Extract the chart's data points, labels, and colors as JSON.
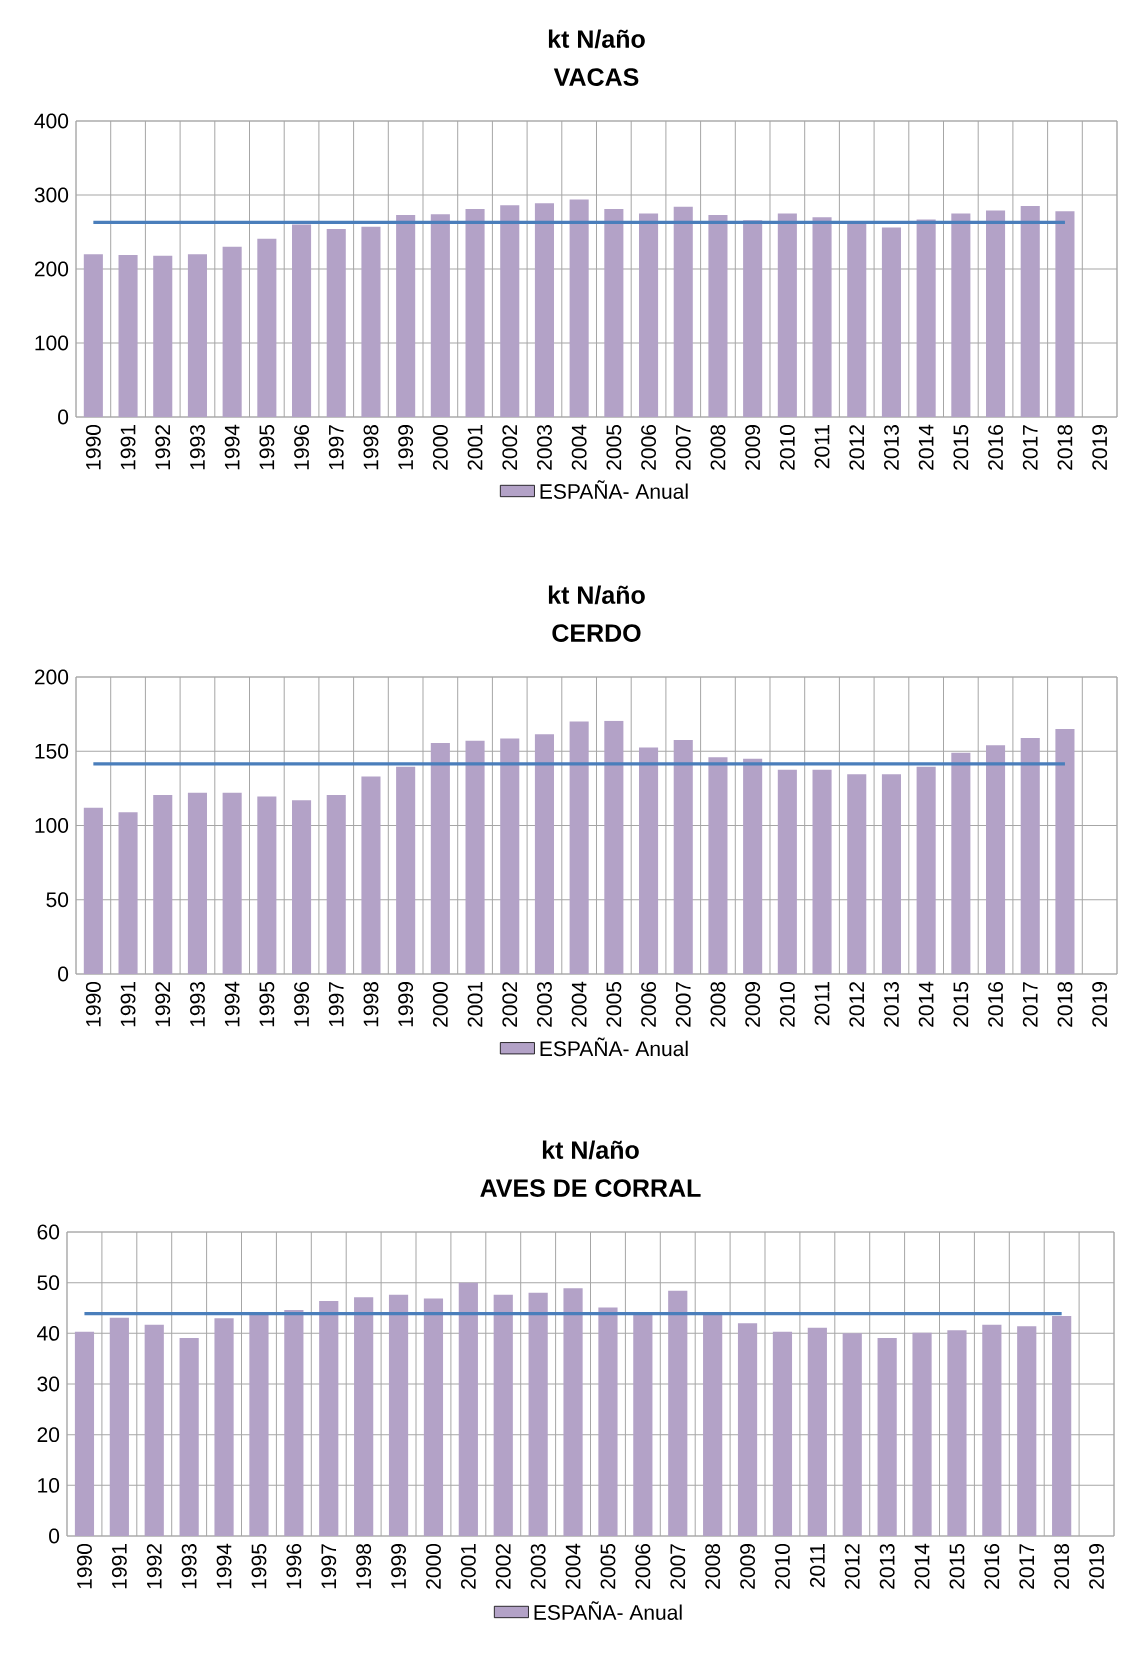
{
  "chart_data": [
    {
      "type": "bar",
      "title": "kt N/año",
      "subtitle": "VACAS",
      "categories": [
        "1990",
        "1991",
        "1992",
        "1993",
        "1994",
        "1995",
        "1996",
        "1997",
        "1998",
        "1999",
        "2000",
        "2001",
        "2002",
        "2003",
        "2004",
        "2005",
        "2006",
        "2007",
        "2008",
        "2009",
        "2010",
        "2011",
        "2012",
        "2013",
        "2014",
        "2015",
        "2016",
        "2017",
        "2018",
        "2019"
      ],
      "series": [
        {
          "name": "ESPAÑA- Anual",
          "color": "#b3a2c7",
          "values": [
            220,
            219,
            218,
            220,
            230,
            241,
            260,
            254,
            257,
            273,
            274,
            281,
            286,
            289,
            294,
            281,
            275,
            284,
            273,
            266,
            275,
            270,
            264,
            256,
            267,
            275,
            279,
            285,
            278,
            null
          ]
        },
        {
          "type": "line",
          "color": "#4a7ebb",
          "values": [
            263,
            263,
            263,
            263,
            263,
            263,
            263,
            263,
            263,
            263,
            263,
            263,
            263,
            263,
            263,
            263,
            263,
            263,
            263,
            263,
            263,
            263,
            263,
            263,
            263,
            263,
            263,
            263,
            263,
            null
          ]
        }
      ],
      "ylim": [
        0,
        400
      ],
      "yticks": [
        0,
        100,
        200,
        300,
        400
      ],
      "grid": true,
      "legend": "bottom"
    },
    {
      "type": "bar",
      "title": "kt N/año",
      "subtitle": "CERDO",
      "categories": [
        "1990",
        "1991",
        "1992",
        "1993",
        "1994",
        "1995",
        "1996",
        "1997",
        "1998",
        "1999",
        "2000",
        "2001",
        "2002",
        "2003",
        "2004",
        "2005",
        "2006",
        "2007",
        "2008",
        "2009",
        "2010",
        "2011",
        "2012",
        "2013",
        "2014",
        "2015",
        "2016",
        "2017",
        "2018",
        "2019"
      ],
      "series": [
        {
          "name": "ESPAÑA- Anual",
          "color": "#b3a2c7",
          "values": [
            112,
            109,
            120.5,
            122,
            122,
            119.5,
            117,
            120.5,
            133,
            139.5,
            155.5,
            157,
            158.5,
            161.5,
            170,
            170.5,
            152.5,
            157.5,
            146,
            145,
            137.5,
            137.5,
            134.5,
            134.5,
            139.5,
            149,
            154,
            159,
            165,
            null
          ]
        },
        {
          "type": "line",
          "color": "#4a7ebb",
          "values": [
            141.5,
            141.5,
            141.5,
            141.5,
            141.5,
            141.5,
            141.5,
            141.5,
            141.5,
            141.5,
            141.5,
            141.5,
            141.5,
            141.5,
            141.5,
            141.5,
            141.5,
            141.5,
            141.5,
            141.5,
            141.5,
            141.5,
            141.5,
            141.5,
            141.5,
            141.5,
            141.5,
            141.5,
            141.5,
            null
          ]
        }
      ],
      "ylim": [
        0,
        200
      ],
      "yticks": [
        0,
        50,
        100,
        150,
        200
      ],
      "grid": true,
      "legend": "bottom"
    },
    {
      "type": "bar",
      "title": "kt N/año",
      "subtitle": "AVES DE CORRAL",
      "categories": [
        "1990",
        "1991",
        "1992",
        "1993",
        "1994",
        "1995",
        "1996",
        "1997",
        "1998",
        "1999",
        "2000",
        "2001",
        "2002",
        "2003",
        "2004",
        "2005",
        "2006",
        "2007",
        "2008",
        "2009",
        "2010",
        "2011",
        "2012",
        "2013",
        "2014",
        "2015",
        "2016",
        "2017",
        "2018",
        "2019"
      ],
      "series": [
        {
          "name": "ESPAÑA- Anual",
          "color": "#b3a2c7",
          "values": [
            40.3,
            43.1,
            41.7,
            39.1,
            43,
            44.1,
            44.6,
            46.4,
            47.1,
            47.6,
            46.9,
            50,
            47.6,
            48,
            48.9,
            45.1,
            44.1,
            48.4,
            43.9,
            42,
            40.3,
            41.1,
            40,
            39.1,
            40.1,
            40.6,
            41.7,
            41.4,
            43.4,
            null
          ]
        },
        {
          "type": "line",
          "color": "#4a7ebb",
          "values": [
            43.9,
            43.9,
            43.9,
            43.9,
            43.9,
            43.9,
            43.9,
            43.9,
            43.9,
            43.9,
            43.9,
            43.9,
            43.9,
            43.9,
            43.9,
            43.9,
            43.9,
            43.9,
            43.9,
            43.9,
            43.9,
            43.9,
            43.9,
            43.9,
            43.9,
            43.9,
            43.9,
            43.9,
            43.9,
            null
          ]
        }
      ],
      "ylim": [
        0,
        60
      ],
      "yticks": [
        0,
        10,
        20,
        30,
        40,
        50,
        60
      ],
      "grid": true,
      "legend": "bottom"
    }
  ]
}
